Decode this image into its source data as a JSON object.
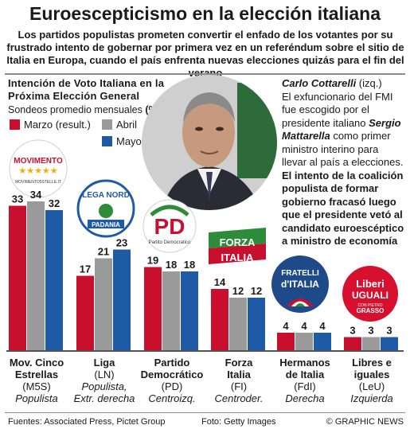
{
  "header": {
    "title": "Euroescepticismo en la elección italiana",
    "subtitle": "Los partidos populistas prometen convertir el enfado de los votantes por su frustrado intento de gobernar por primera vez en un referéndum sobre el sitio de Italia en Europa, cuando el país enfrenta nuevas elecciones quizás para el fin del verano"
  },
  "caption": {
    "name": "Carlo Cottarelli",
    "name_note": " (izq.)",
    "text_1": "El exfuncionario del FMI fue escogido por el presidente italiano ",
    "president": "Sergio Mattarella",
    "text_2": " como primer ministro interino para llevar al país a elecciones.",
    "text_bold": "El intento de la coalición populista de formar gobierno fracasó luego que el presidente vetó al candidato euroescéptico a ministro de economía"
  },
  "logos": {
    "m5s_top": "MOVIMENTO",
    "m5s_bottom": "MOVIMENTO5STELLE.IT",
    "lega_top": "LEGA NORD",
    "lega_bottom": "PADANIA",
    "pd_main": "PD",
    "pd_sub": "Partito Democratico",
    "fi_line1": "FORZA",
    "fi_line2": "ITALIA",
    "fdi_line1": "FRATELLI",
    "fdi_line2": "d'ITALIA",
    "leu_line1": "Liberi",
    "leu_line2": "UGUALI",
    "leu_line3": "CON PIETRO",
    "leu_line4": "GRASSO"
  },
  "footer": {
    "sources": "Fuentes: Associated Press, Pictet Group",
    "photo": "Foto: Getty Images",
    "credit": "© GRAPHIC NEWS"
  },
  "chart_data": {
    "type": "bar",
    "title": "Intención de Voto Italiana en la Próxima Elección General",
    "title_lines": [
      "Intención de Voto Italiana en la",
      "Próxima  Elección General"
    ],
    "unit_label": "Sondeos promedio mensuales",
    "unit_symbol": "(%)",
    "categories": [
      "Mov. Cinco Estrellas",
      "Liga",
      "Partido Democrático",
      "Forza Italia",
      "Hermanos de Italia",
      "Libres e iguales"
    ],
    "category_labels": [
      {
        "name": [
          "Mov. Cinco",
          "Estrellas"
        ],
        "abbr": "(M5S)",
        "ideology": "Populista"
      },
      {
        "name": [
          "Liga"
        ],
        "abbr": "(LN)",
        "ideology": [
          "Populista,",
          "Extr. derecha"
        ]
      },
      {
        "name": [
          "Partido",
          "Democrático"
        ],
        "abbr": "(PD)",
        "ideology": "Centroizq."
      },
      {
        "name": [
          "Forza",
          "Italia"
        ],
        "abbr": "(FI)",
        "ideology": "Centroder."
      },
      {
        "name": [
          "Hermanos",
          "de Italia"
        ],
        "abbr": "(FdI)",
        "ideology": "Derecha"
      },
      {
        "name": [
          "Libres e",
          "iguales"
        ],
        "abbr": "(LeU)",
        "ideology": "Izquierda"
      }
    ],
    "series": [
      {
        "name": "Marzo (result.)",
        "color": "#c8102e",
        "values": [
          33,
          17,
          19,
          14,
          4,
          3
        ]
      },
      {
        "name": "Abril",
        "color": "#9a9a9a",
        "values": [
          34,
          21,
          18,
          12,
          4,
          3
        ]
      },
      {
        "name": "Mayo",
        "color": "#1f5aa6",
        "values": [
          32,
          23,
          18,
          12,
          4,
          3
        ]
      }
    ],
    "ylim": [
      0,
      35
    ],
    "legend_placement": "top-left",
    "grid": false
  }
}
